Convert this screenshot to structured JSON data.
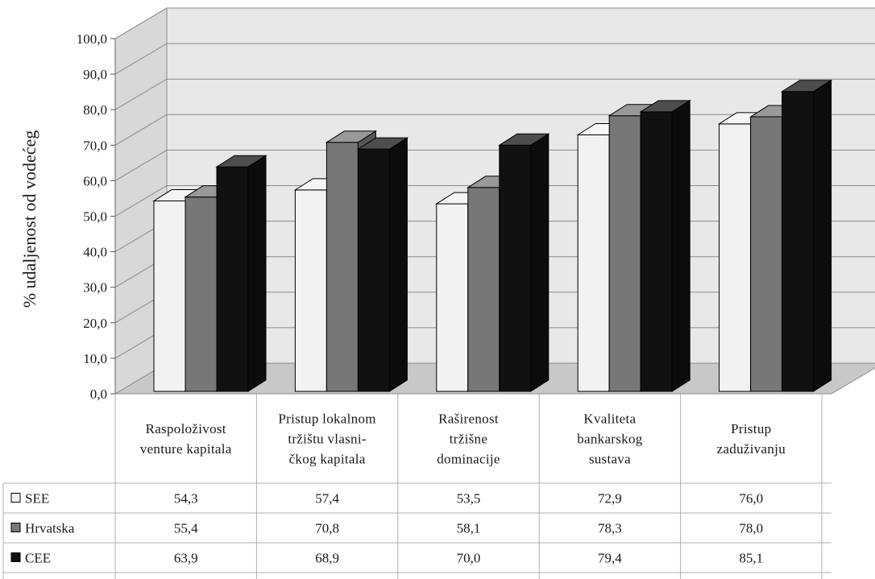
{
  "chart_data": {
    "type": "bar",
    "title": "",
    "ylabel": "% udaljenost od vodećeg",
    "ylim": [
      0,
      100
    ],
    "yticks": [
      "0,0",
      "10,0",
      "20,0",
      "30,0",
      "40,0",
      "50,0",
      "60,0",
      "70,0",
      "80,0",
      "90,0",
      "100,0"
    ],
    "grid": true,
    "style": "3d-clustered-with-data-table",
    "categories": [
      [
        "Raspoloživost",
        "venture kapitala"
      ],
      [
        "Pristup lokalnom",
        "tržištu vlasni-",
        "čkog kapitala"
      ],
      [
        "Raširenost",
        "tržišne",
        "dominacije"
      ],
      [
        "Kvaliteta",
        "bankarskog",
        "sustava"
      ],
      [
        "Pristup",
        "zaduživanju"
      ]
    ],
    "series": [
      {
        "name": "SEE",
        "color": "#f2f2f2",
        "values": [
          54.3,
          57.4,
          53.5,
          72.9,
          76.0
        ],
        "labels": [
          "54,3",
          "57,4",
          "53,5",
          "72,9",
          "76,0"
        ]
      },
      {
        "name": "Hrvatska",
        "color": "#777777",
        "values": [
          55.4,
          70.8,
          58.1,
          78.3,
          78.0
        ],
        "labels": [
          "55,4",
          "70,8",
          "58,1",
          "78,3",
          "78,0"
        ]
      },
      {
        "name": "CEE",
        "color": "#111111",
        "values": [
          63.9,
          68.9,
          70.0,
          79.4,
          85.1
        ],
        "labels": [
          "63,9",
          "68,9",
          "70,0",
          "79,4",
          "85,1"
        ]
      }
    ]
  }
}
